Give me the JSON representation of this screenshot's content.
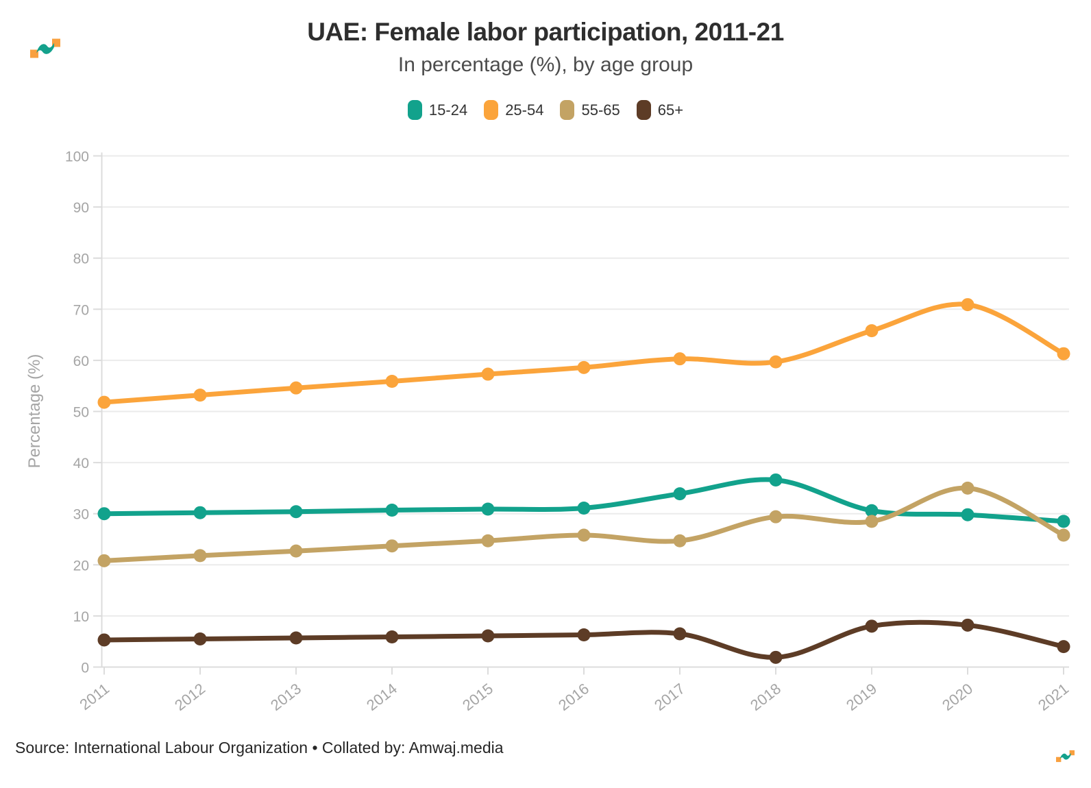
{
  "page": {
    "title": "UAE: Female labor participation, 2011-21",
    "subtitle": "In percentage (%), by age group",
    "footer": "Source: International Labour Organization • Collated by: Amwaj.media"
  },
  "logo": {
    "square_color": "#f9a03f",
    "wave_color": "#14a18c"
  },
  "chart_data": {
    "type": "line",
    "title": "UAE: Female labor participation, 2011-21",
    "subtitle": "In percentage (%), by age group",
    "x": [
      2011,
      2012,
      2013,
      2014,
      2015,
      2016,
      2017,
      2018,
      2019,
      2020,
      2021
    ],
    "series": [
      {
        "name": "15-24",
        "color": "#12a28c",
        "values": [
          30.0,
          30.2,
          30.4,
          30.7,
          30.9,
          31.1,
          33.9,
          36.6,
          30.6,
          29.8,
          28.5
        ]
      },
      {
        "name": "25-54",
        "color": "#fba43b",
        "values": [
          51.8,
          53.2,
          54.6,
          55.9,
          57.3,
          58.6,
          60.3,
          59.7,
          65.8,
          70.9,
          61.3
        ]
      },
      {
        "name": "55-65",
        "color": "#c3a364",
        "values": [
          20.8,
          21.8,
          22.7,
          23.7,
          24.7,
          25.8,
          24.7,
          29.4,
          28.5,
          35.0,
          25.8
        ]
      },
      {
        "name": "65+",
        "color": "#5d3c26",
        "values": [
          5.3,
          5.5,
          5.7,
          5.9,
          6.1,
          6.3,
          6.5,
          1.9,
          8.0,
          8.2,
          4.0
        ]
      }
    ],
    "xlabel": "",
    "ylabel": "Percentage (%)",
    "ylim": [
      0,
      100
    ],
    "ytick_step": 10,
    "grid": true,
    "legend_position": "top"
  }
}
